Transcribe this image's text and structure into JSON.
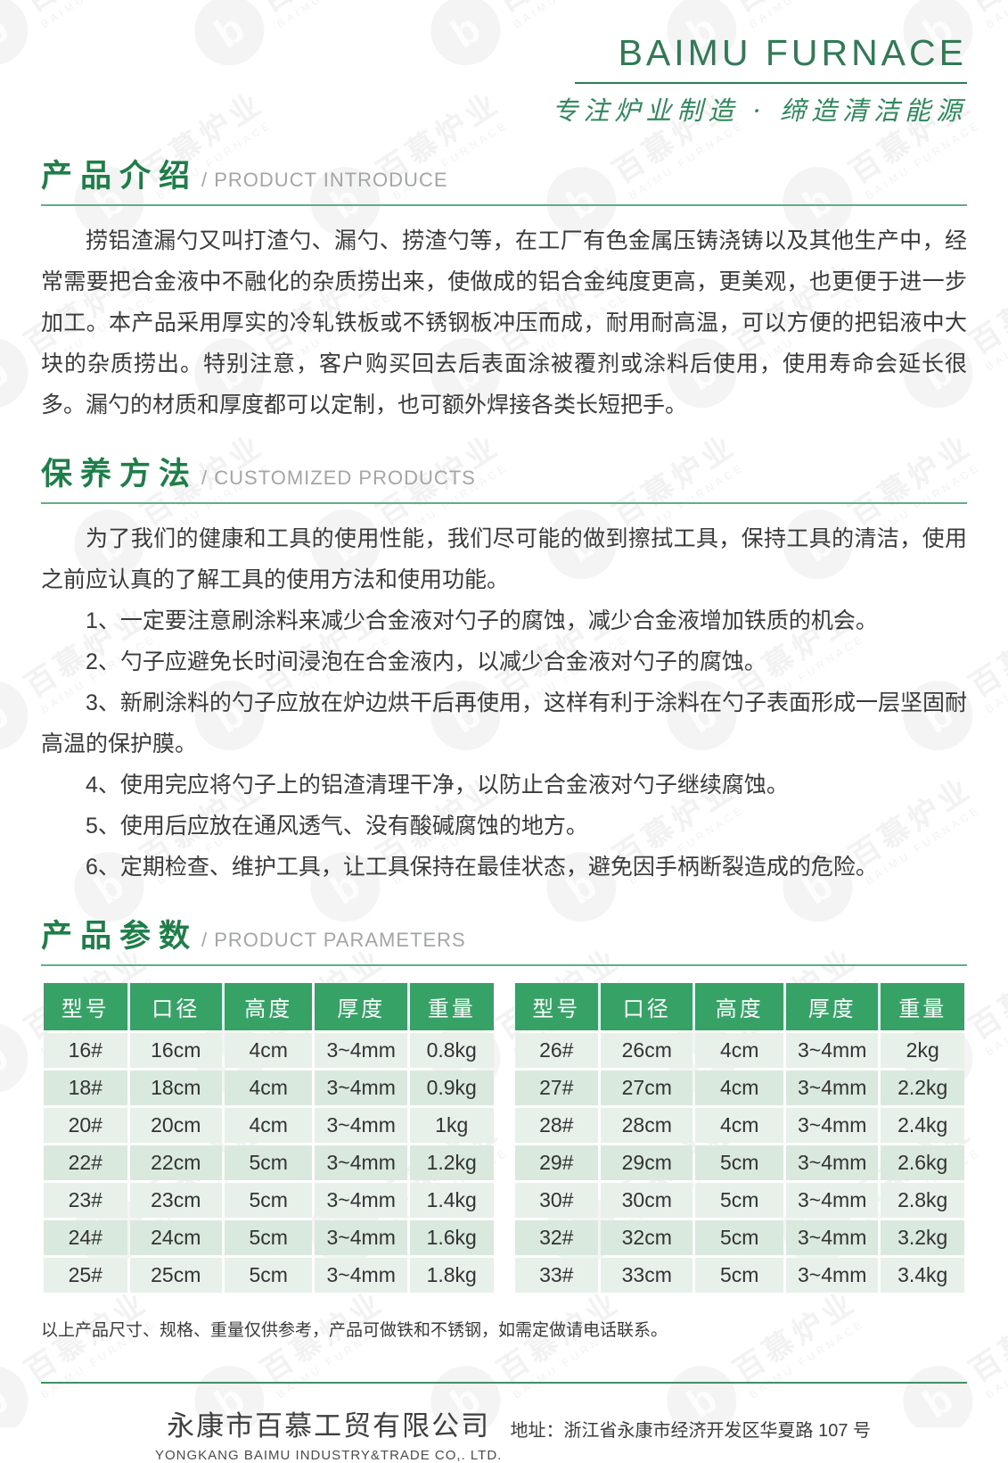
{
  "header": {
    "brand": "BAIMU FURNACE",
    "tagline": "专注炉业制造 · 缔造清洁能源"
  },
  "sections": {
    "intro": {
      "title_cn": "产品介绍",
      "title_en": "/ PRODUCT INTRODUCE",
      "paragraph": "捞铝渣漏勺又叫打渣勺、漏勺、捞渣勺等，在工厂有色金属压铸浇铸以及其他生产中，经常需要把合金液中不融化的杂质捞出来，使做成的铝合金纯度更高，更美观，也更便于进一步加工。本产品采用厚实的冷轧铁板或不锈钢板冲压而成，耐用耐高温，可以方便的把铝液中大块的杂质捞出。特别注意，客户购买回去后表面涂被覆剂或涂料后使用，使用寿命会延长很多。漏勺的材质和厚度都可以定制，也可额外焊接各类长短把手。"
    },
    "maintenance": {
      "title_cn": "保养方法",
      "title_en": "/ CUSTOMIZED PRODUCTS",
      "intro": "为了我们的健康和工具的使用性能，我们尽可能的做到擦拭工具，保持工具的清洁，使用之前应认真的了解工具的使用方法和使用功能。",
      "items": [
        "1、一定要注意刷涂料来减少合金液对勺子的腐蚀，减少合金液增加铁质的机会。",
        "2、勺子应避免长时间浸泡在合金液内，以减少合金液对勺子的腐蚀。",
        "3、新刷涂料的勺子应放在炉边烘干后再使用，这样有利于涂料在勺子表面形成一层坚固耐高温的保护膜。",
        "4、使用完应将勺子上的铝渣清理干净，以防止合金液对勺子继续腐蚀。",
        "5、使用后应放在通风透气、没有酸碱腐蚀的地方。",
        "6、定期检查、维护工具，让工具保持在最佳状态，避免因手柄断裂造成的危险。"
      ]
    },
    "parameters": {
      "title_cn": "产品参数",
      "title_en": "/ PRODUCT PARAMETERS",
      "note": "以上产品尺寸、规格、重量仅供参考，产品可做铁和不锈钢，如需定做请电话联系。"
    }
  },
  "tables": {
    "headers": [
      "型号",
      "口径",
      "高度",
      "厚度",
      "重量"
    ],
    "left_rows": [
      [
        "16#",
        "16cm",
        "4cm",
        "3~4mm",
        "0.8kg"
      ],
      [
        "18#",
        "18cm",
        "4cm",
        "3~4mm",
        "0.9kg"
      ],
      [
        "20#",
        "20cm",
        "4cm",
        "3~4mm",
        "1kg"
      ],
      [
        "22#",
        "22cm",
        "5cm",
        "3~4mm",
        "1.2kg"
      ],
      [
        "23#",
        "23cm",
        "5cm",
        "3~4mm",
        "1.4kg"
      ],
      [
        "24#",
        "24cm",
        "5cm",
        "3~4mm",
        "1.6kg"
      ],
      [
        "25#",
        "25cm",
        "5cm",
        "3~4mm",
        "1.8kg"
      ]
    ],
    "right_rows": [
      [
        "26#",
        "26cm",
        "4cm",
        "3~4mm",
        "2kg"
      ],
      [
        "27#",
        "27cm",
        "4cm",
        "3~4mm",
        "2.2kg"
      ],
      [
        "28#",
        "28cm",
        "4cm",
        "3~4mm",
        "2.4kg"
      ],
      [
        "29#",
        "29cm",
        "5cm",
        "3~4mm",
        "2.6kg"
      ],
      [
        "30#",
        "30cm",
        "5cm",
        "3~4mm",
        "2.8kg"
      ],
      [
        "32#",
        "32cm",
        "5cm",
        "3~4mm",
        "3.2kg"
      ],
      [
        "33#",
        "33cm",
        "5cm",
        "3~4mm",
        "3.4kg"
      ]
    ]
  },
  "footer": {
    "company_cn": "永康市百慕工贸有限公司",
    "company_en": "YONGKANG BAIMU INDUSTRY&TRADE CO,. LTD.",
    "address": "地址：浙江省永康市经济开发区华夏路 107 号"
  },
  "watermark": {
    "text_cn": "百慕炉业",
    "text_en": "BAIMU FURNACE"
  },
  "colors": {
    "brand_green": "#2e7b55",
    "section_title_green": "#1c7f47",
    "table_header_green": "#36a266",
    "row_light": "#e7f1ea",
    "row_dark": "#d9e9de"
  }
}
